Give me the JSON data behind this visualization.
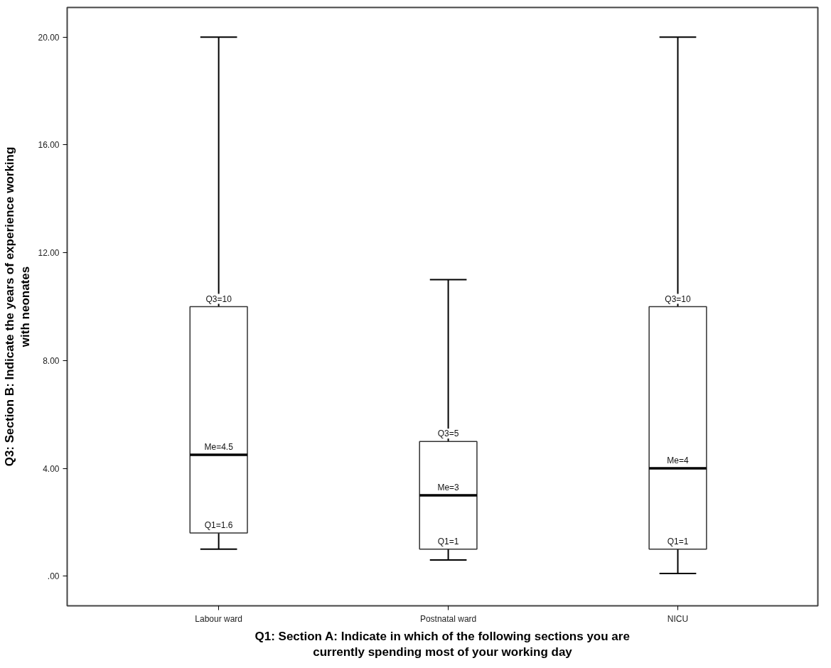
{
  "chart_data": {
    "type": "box",
    "xlabel": "Q1: Section A: Indicate in which of the following sections you are\ncurrently spending most of your working day",
    "ylabel": "Q3: Section B: Indicate the years of experience working\nwith neonates",
    "categories": [
      "Labour ward",
      "Postnatal ward",
      "NICU"
    ],
    "boxes": [
      {
        "low": 1,
        "q1": 1.6,
        "median": 4.5,
        "q3": 10,
        "high": 20
      },
      {
        "low": 0.6,
        "q1": 1,
        "median": 3,
        "q3": 5,
        "high": 11
      },
      {
        "low": 0.1,
        "q1": 1,
        "median": 4,
        "q3": 10,
        "high": 20
      }
    ],
    "color": "#ffffff",
    "ylim": [
      -1.1,
      21.1
    ],
    "yticks": [
      {
        "value": 0,
        "label": ".00"
      },
      {
        "value": 4,
        "label": "4.00"
      },
      {
        "value": 8,
        "label": "8.00"
      },
      {
        "value": 12,
        "label": "12.00"
      },
      {
        "value": 16,
        "label": "16.00"
      },
      {
        "value": 20,
        "label": "20.00"
      }
    ],
    "grid": false,
    "annotations": [
      {
        "text": "Q3=10",
        "x": "Labour ward",
        "y": 10
      },
      {
        "text": "Me=4.5",
        "x": "Labour ward",
        "y": 4.5
      },
      {
        "text": "Q1=1.6",
        "x": "Labour ward",
        "y": 1.6
      },
      {
        "text": "Q3=5",
        "x": "Postnatal ward",
        "y": 5
      },
      {
        "text": "Me=3",
        "x": "Postnatal ward",
        "y": 3
      },
      {
        "text": "Q1=1",
        "x": "Postnatal ward",
        "y": 1
      },
      {
        "text": "Q3=10",
        "x": "NICU",
        "y": 10
      },
      {
        "text": "Me=4",
        "x": "NICU",
        "y": 4
      },
      {
        "text": "Q1=1",
        "x": "NICU",
        "y": 1
      }
    ]
  }
}
